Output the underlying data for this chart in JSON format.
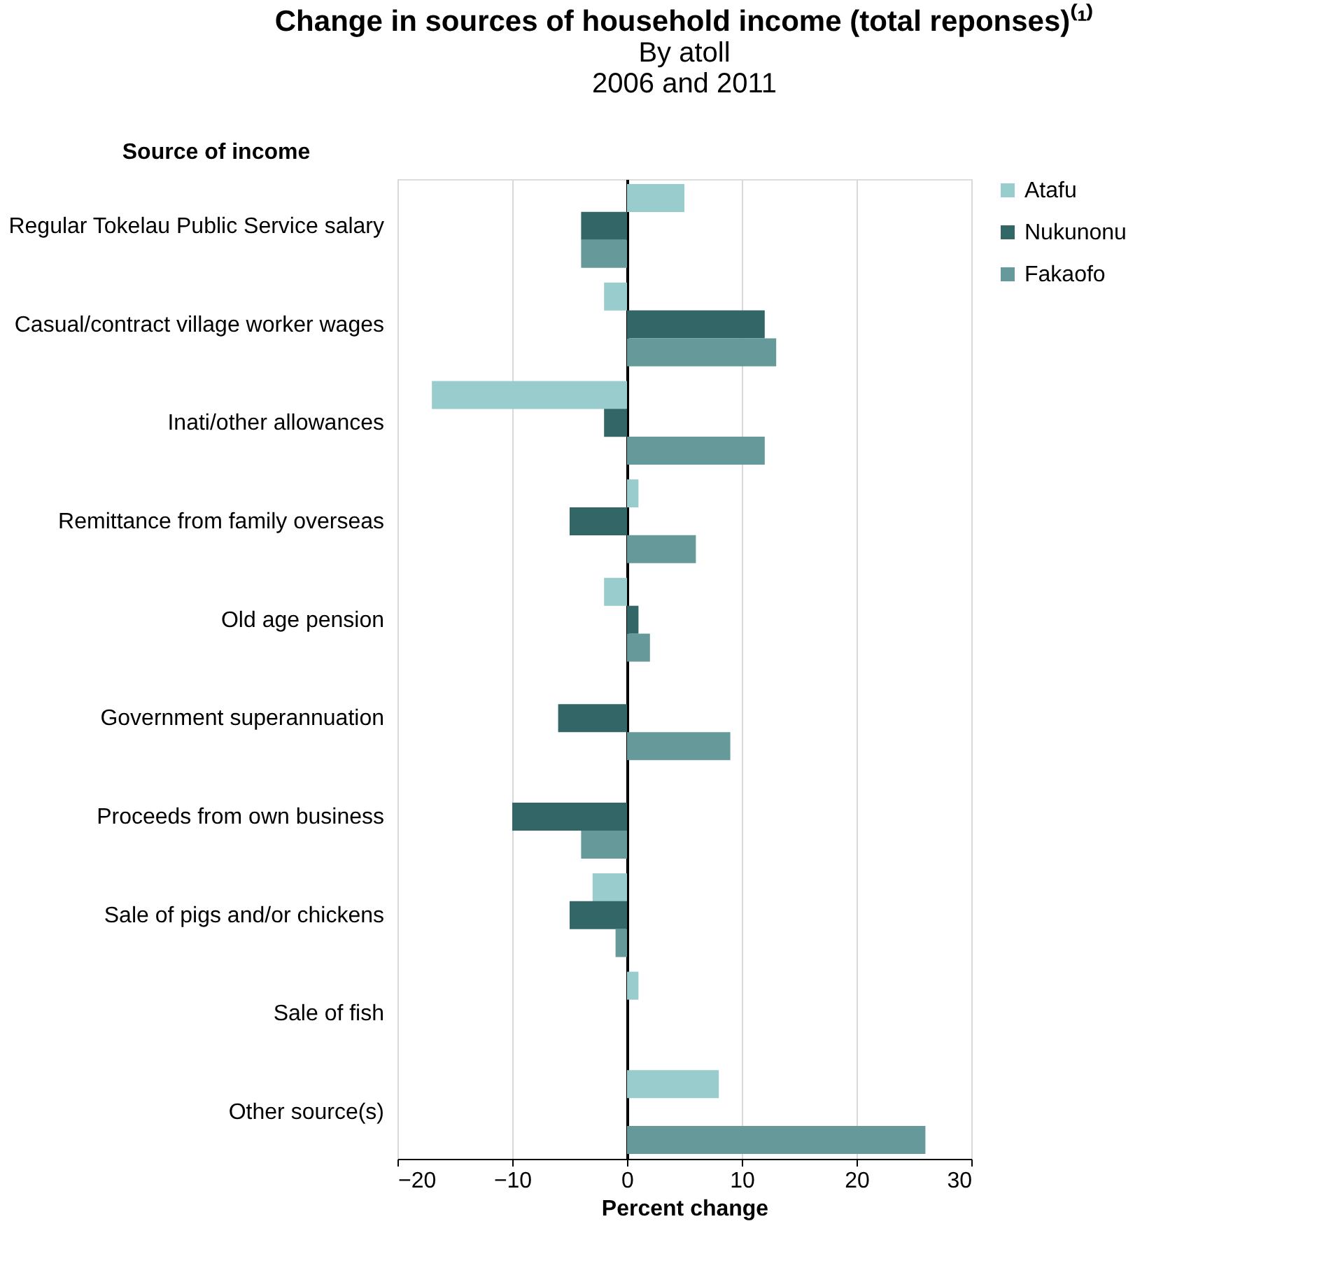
{
  "chart_data": {
    "type": "bar",
    "orientation": "horizontal",
    "title": "Change in sources of household income (total reponses)⁽¹⁾",
    "subtitle": "By atoll\n2006 and 2011",
    "ylabel": "Source of income",
    "xlabel": "Percent change",
    "categories": [
      "Regular Tokelau Public Service salary",
      "Casual/contract village worker wages",
      "Inati/other allowances",
      "Remittance from family overseas",
      "Old age pension",
      "Government superannuation",
      "Proceeds from own business",
      "Sale of pigs and/or chickens",
      "Sale of fish",
      "Other source(s)"
    ],
    "series": [
      {
        "name": "Atafu",
        "color": "#99cccc",
        "values": [
          5,
          -2,
          -17,
          1,
          -2,
          0,
          0,
          -3,
          1,
          8
        ]
      },
      {
        "name": "Nukunonu",
        "color": "#336666",
        "values": [
          -4,
          12,
          -2,
          -5,
          1,
          -6,
          -10,
          -5,
          0,
          0
        ]
      },
      {
        "name": "Fakaofo",
        "color": "#669999",
        "values": [
          -4,
          13,
          12,
          6,
          2,
          9,
          -4,
          -1,
          0,
          26
        ]
      }
    ],
    "xlim": [
      -20,
      30
    ],
    "xticks": [
      -20,
      -10,
      0,
      10,
      20,
      30
    ],
    "grid": "x",
    "legend": "right"
  }
}
